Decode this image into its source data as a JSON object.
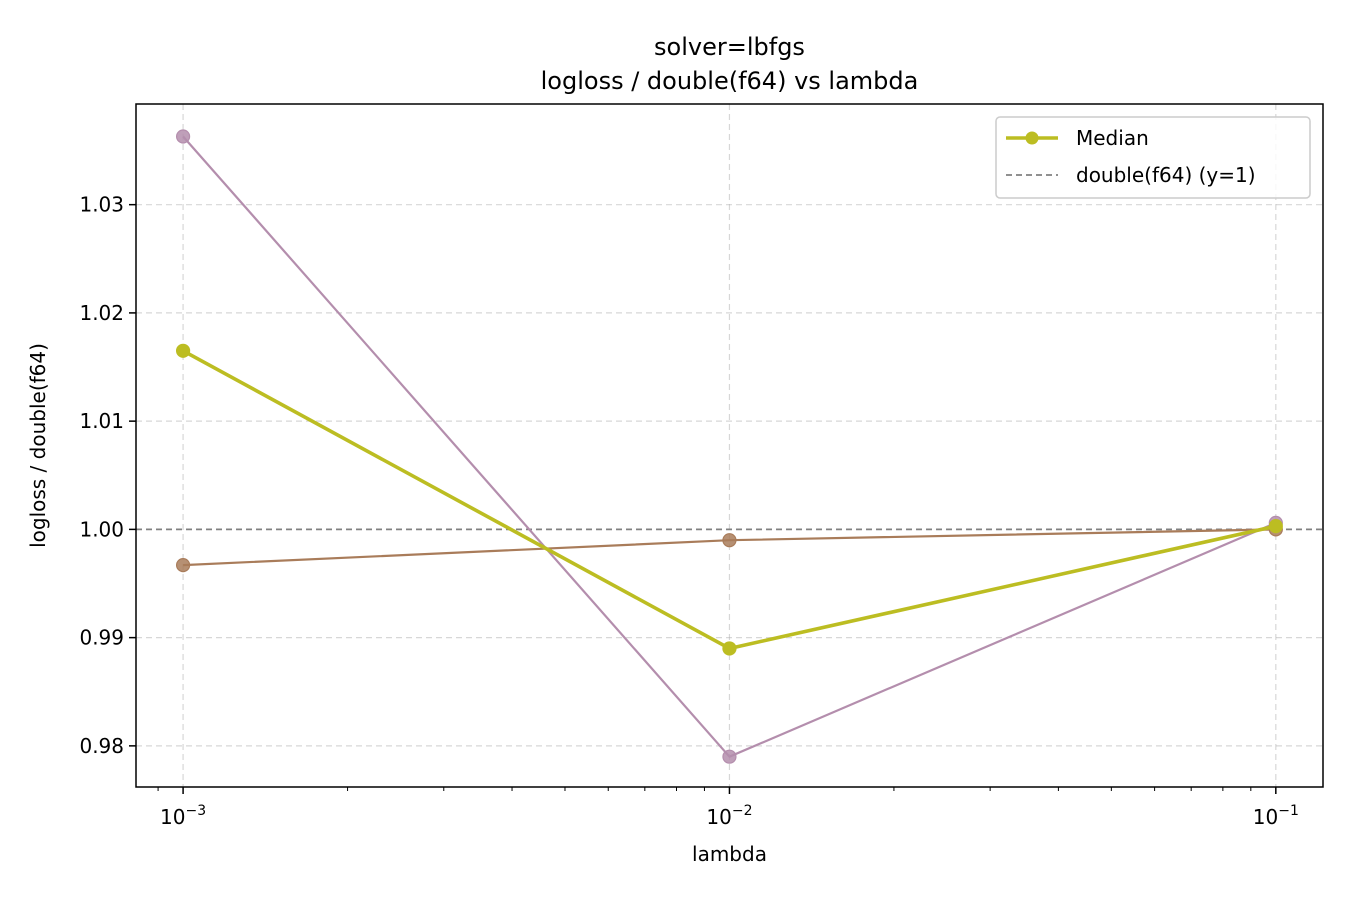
{
  "chart_data": {
    "type": "line",
    "title_line1": "solver=lbfgs",
    "title_line2": "logloss / double(f64) vs lambda",
    "xlabel": "lambda",
    "ylabel": "logloss / double(f64)",
    "xscale": "log",
    "x": [
      0.001,
      0.01,
      0.1
    ],
    "x_tick_labels": [
      {
        "value": 0.001,
        "base": "10",
        "exp": "−3"
      },
      {
        "value": 0.01,
        "base": "10",
        "exp": "−2"
      },
      {
        "value": 0.1,
        "base": "10",
        "exp": "−1"
      }
    ],
    "xlim": [
      0.00082,
      0.122
    ],
    "ylim": [
      0.9762,
      1.0393
    ],
    "y_ticks": [
      0.98,
      0.99,
      1.0,
      1.01,
      1.02,
      1.03
    ],
    "y_tick_labels": [
      "0.98",
      "0.99",
      "1.00",
      "1.01",
      "1.02",
      "1.03"
    ],
    "grid": true,
    "legend_position": "top-right",
    "series": [
      {
        "name": "",
        "color": "#b48ead",
        "values": [
          1.0363,
          0.979,
          1.0006
        ],
        "linewidth": 2.2
      },
      {
        "name": "",
        "color": "#a97c5a",
        "values": [
          0.9967,
          0.999,
          1.0
        ],
        "linewidth": 2.2
      },
      {
        "name": "Median",
        "color": "#bcbd22",
        "values": [
          1.0165,
          0.989,
          1.0003
        ],
        "linewidth": 3.6
      }
    ],
    "reference_line": {
      "name": "double(f64) (y=1)",
      "y": 1.0,
      "color": "#808080"
    }
  }
}
